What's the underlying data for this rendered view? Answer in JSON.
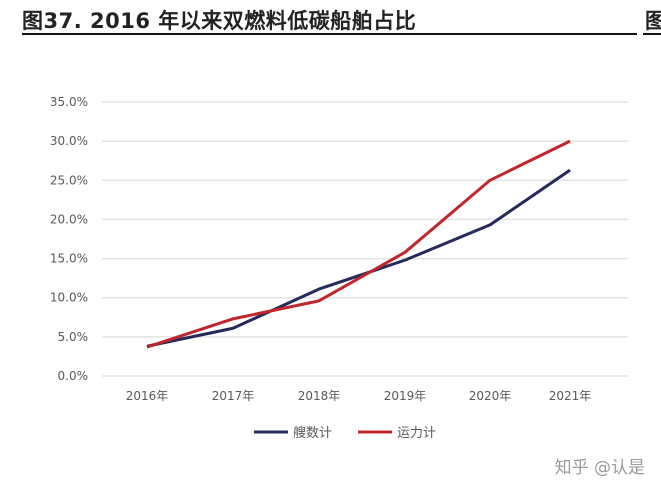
{
  "header": {
    "title": "图37. 2016 年以来双燃料低碳船舶占比",
    "next_title_fragment": "图"
  },
  "watermark": "知乎 @认是",
  "chart_data": {
    "type": "line",
    "title": "",
    "xlabel": "",
    "ylabel": "",
    "categories": [
      "2016年",
      "2017年",
      "2018年",
      "2019年",
      "2020年",
      "2021年"
    ],
    "yticks": [
      "0.0%",
      "5.0%",
      "10.0%",
      "15.0%",
      "20.0%",
      "25.0%",
      "30.0%",
      "35.0%"
    ],
    "ylim": [
      0,
      35
    ],
    "grid": true,
    "legend": "bottom",
    "series": [
      {
        "name": "艘数计",
        "color": "#262a5a",
        "values": [
          3.8,
          6.1,
          11.1,
          14.8,
          19.3,
          26.3
        ]
      },
      {
        "name": "运力计",
        "color": "#c0262d",
        "values": [
          3.7,
          7.3,
          9.6,
          15.8,
          25.0,
          30.0
        ]
      }
    ]
  }
}
